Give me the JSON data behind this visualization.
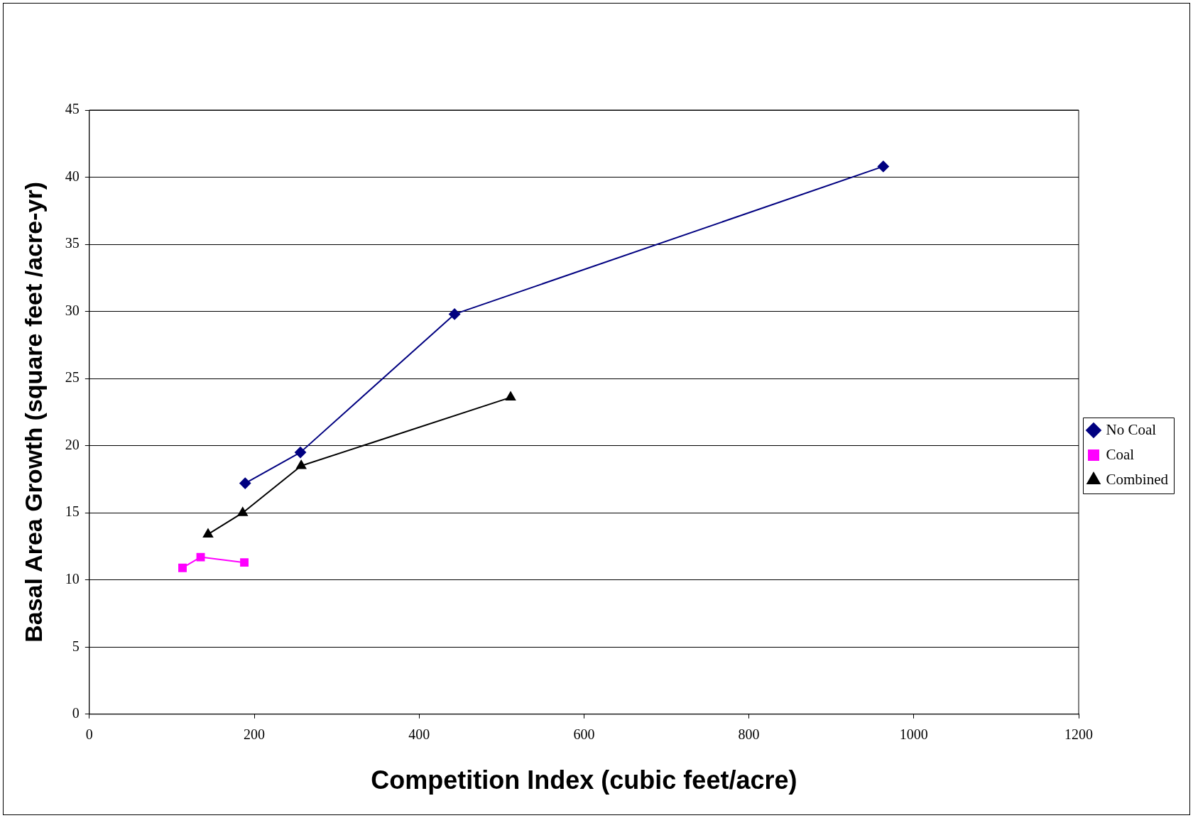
{
  "chart_data": {
    "type": "line",
    "xlabel": "Competition Index (cubic feet/acre)",
    "ylabel": "Basal Area Growth (square feet /acre-yr)",
    "xlim": [
      0,
      1200
    ],
    "xticks": [
      0,
      200,
      400,
      600,
      800,
      1000,
      1200
    ],
    "ylim": [
      0,
      45
    ],
    "yticks": [
      0,
      5,
      10,
      15,
      20,
      25,
      30,
      35,
      40,
      45
    ],
    "grid": "y",
    "legend": "right",
    "line_style": "solid",
    "series": [
      {
        "name": "No Coal",
        "color": "#000080",
        "marker": "diamond",
        "x": [
          189,
          256,
          443,
          963
        ],
        "values": [
          17.2,
          19.5,
          29.8,
          40.8
        ]
      },
      {
        "name": "Coal",
        "color": "#ff00ff",
        "marker": "square",
        "x": [
          113,
          135,
          188
        ],
        "values": [
          10.9,
          11.7,
          11.3
        ]
      },
      {
        "name": "Combined",
        "color": "#000000",
        "marker": "triangle",
        "x": [
          144,
          186,
          257,
          511
        ],
        "values": [
          13.4,
          15.0,
          18.5,
          23.6
        ]
      }
    ]
  }
}
